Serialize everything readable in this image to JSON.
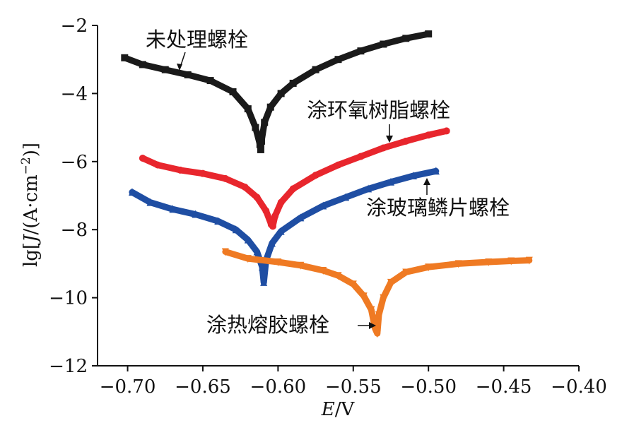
{
  "chart_data": {
    "type": "line",
    "xlabel_italic": "E",
    "xlabel_rest": "/V",
    "ylabel_pre": "lg[",
    "ylabel_italic": "J",
    "ylabel_post": "/(A·cm",
    "ylabel_sup": "−2",
    "ylabel_close": ")]",
    "xlim": [
      -0.72,
      -0.4
    ],
    "ylim": [
      -12,
      -2
    ],
    "x_ticks": [
      -0.7,
      -0.65,
      -0.6,
      -0.55,
      -0.5,
      -0.45,
      -0.4
    ],
    "x_tick_labels": [
      "−0.70",
      "−0.65",
      "−0.60",
      "−0.55",
      "−0.50",
      "−0.45",
      "−0.40"
    ],
    "y_ticks": [
      -12,
      -10,
      -8,
      -6,
      -4,
      -2
    ],
    "y_tick_labels": [
      "−12",
      "−10",
      "−8",
      "−6",
      "−4",
      "−2"
    ],
    "series": [
      {
        "name": "未处理螺栓",
        "color": "#1a1a1a",
        "marker": "square",
        "x": [
          -0.702,
          -0.69,
          -0.675,
          -0.66,
          -0.645,
          -0.63,
          -0.62,
          -0.615,
          -0.612,
          -0.6115,
          -0.611,
          -0.609,
          -0.605,
          -0.598,
          -0.59,
          -0.575,
          -0.56,
          -0.545,
          -0.53,
          -0.515,
          -0.5
        ],
        "y": [
          -2.95,
          -3.15,
          -3.3,
          -3.45,
          -3.62,
          -3.95,
          -4.45,
          -5.0,
          -5.5,
          -5.65,
          -5.4,
          -4.85,
          -4.4,
          -4.0,
          -3.7,
          -3.3,
          -3.0,
          -2.75,
          -2.55,
          -2.38,
          -2.25
        ]
      },
      {
        "name": "涂环氧树脂螺栓",
        "color": "#e8262d",
        "marker": "circle",
        "x": [
          -0.69,
          -0.68,
          -0.665,
          -0.65,
          -0.635,
          -0.622,
          -0.614,
          -0.608,
          -0.6045,
          -0.6035,
          -0.602,
          -0.598,
          -0.59,
          -0.575,
          -0.56,
          -0.545,
          -0.53,
          -0.515,
          -0.5,
          -0.488
        ],
        "y": [
          -5.9,
          -6.1,
          -6.25,
          -6.35,
          -6.5,
          -6.75,
          -7.05,
          -7.45,
          -7.85,
          -7.9,
          -7.6,
          -7.2,
          -6.8,
          -6.4,
          -6.1,
          -5.85,
          -5.6,
          -5.4,
          -5.22,
          -5.1
        ]
      },
      {
        "name": "涂玻璃鳞片螺栓",
        "color": "#1f4ea3",
        "marker": "triangle-up",
        "x": [
          -0.697,
          -0.685,
          -0.67,
          -0.655,
          -0.64,
          -0.628,
          -0.62,
          -0.614,
          -0.6105,
          -0.6095,
          -0.608,
          -0.604,
          -0.598,
          -0.585,
          -0.57,
          -0.555,
          -0.54,
          -0.525,
          -0.51,
          -0.495
        ],
        "y": [
          -6.9,
          -7.2,
          -7.4,
          -7.55,
          -7.75,
          -8.0,
          -8.3,
          -8.65,
          -9.1,
          -9.55,
          -8.9,
          -8.4,
          -8.05,
          -7.65,
          -7.3,
          -7.05,
          -6.8,
          -6.6,
          -6.42,
          -6.28
        ]
      },
      {
        "name": "涂热熔胶螺栓",
        "color": "#ef7a23",
        "marker": "triangle-down",
        "x": [
          -0.635,
          -0.62,
          -0.6,
          -0.585,
          -0.57,
          -0.56,
          -0.55,
          -0.543,
          -0.538,
          -0.5355,
          -0.534,
          -0.533,
          -0.53,
          -0.525,
          -0.515,
          -0.5,
          -0.48,
          -0.46,
          -0.445,
          -0.433
        ],
        "y": [
          -8.65,
          -8.85,
          -8.95,
          -9.05,
          -9.2,
          -9.35,
          -9.6,
          -9.95,
          -10.35,
          -10.9,
          -11.05,
          -10.5,
          -10.0,
          -9.55,
          -9.25,
          -9.1,
          -9.0,
          -8.95,
          -8.92,
          -8.9
        ]
      }
    ]
  }
}
